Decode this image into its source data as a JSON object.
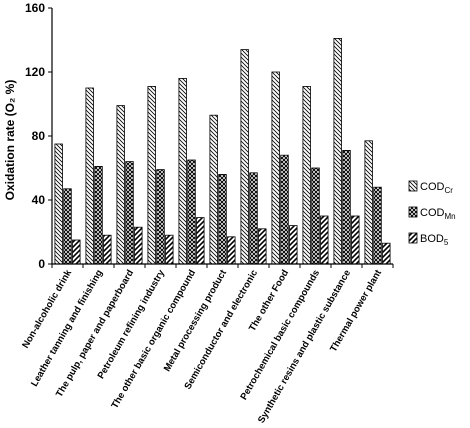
{
  "chart_data": {
    "type": "bar",
    "title": "",
    "xlabel": "",
    "ylabel": "Oxidation rate (O₂ %)",
    "ylim": [
      0,
      160
    ],
    "yticks": [
      0,
      40,
      80,
      120,
      160
    ],
    "grid": false,
    "legend_position": "right",
    "categories": [
      "Non-alcoholic drink",
      "Leather tanning and finishing",
      "The pulp, paper and paperboard",
      "Petroleum refining industry",
      "The other basic organic compound",
      "Metal processing product",
      "Semiconductor and electronic",
      "The other Food",
      "Petrochemical basic compounds",
      "Synthetic resins and plastic substance",
      "Thermal power plant"
    ],
    "series": [
      {
        "name": "COD",
        "subscript": "Cr",
        "pattern": "diag-back",
        "values": [
          75,
          110,
          99,
          111,
          116,
          93,
          134,
          120,
          111,
          141,
          77
        ]
      },
      {
        "name": "COD",
        "subscript": "Mn",
        "pattern": "cross",
        "values": [
          47,
          61,
          64,
          59,
          65,
          56,
          57,
          68,
          60,
          71,
          48
        ]
      },
      {
        "name": "BOD",
        "subscript": "5",
        "pattern": "diag-fwd",
        "values": [
          15,
          18,
          23,
          18,
          29,
          17,
          22,
          24,
          30,
          30,
          13
        ]
      }
    ]
  }
}
